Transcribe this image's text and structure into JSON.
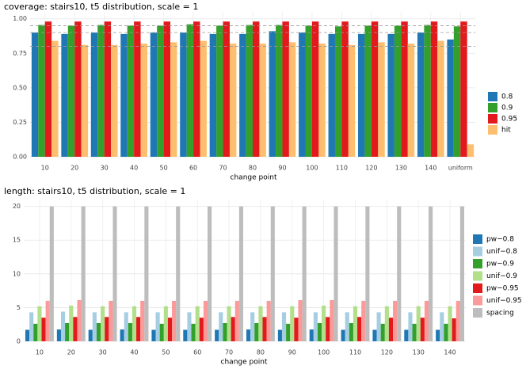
{
  "chart_data": [
    {
      "type": "bar",
      "title": "coverage: stairs10, t5 distribution, scale = 1",
      "x_label": "change point",
      "categories": [
        "10",
        "20",
        "30",
        "40",
        "50",
        "60",
        "70",
        "80",
        "90",
        "100",
        "110",
        "120",
        "130",
        "140",
        "uniform"
      ],
      "series": [
        {
          "name": "0.8",
          "color": "#1f78b4",
          "values": [
            0.9,
            0.89,
            0.9,
            0.89,
            0.9,
            0.9,
            0.89,
            0.89,
            0.91,
            0.9,
            0.89,
            0.89,
            0.89,
            0.9,
            0.85
          ]
        },
        {
          "name": "0.9",
          "color": "#33a02c",
          "values": [
            0.955,
            0.95,
            0.955,
            0.95,
            0.95,
            0.96,
            0.95,
            0.955,
            0.955,
            0.95,
            0.945,
            0.95,
            0.95,
            0.955,
            0.945
          ]
        },
        {
          "name": "0.95",
          "color": "#e31a1c",
          "values": [
            0.98,
            0.98,
            0.98,
            0.98,
            0.98,
            0.98,
            0.98,
            0.98,
            0.98,
            0.98,
            0.98,
            0.98,
            0.98,
            0.98,
            0.98
          ]
        },
        {
          "name": "hit",
          "color": "#fdbf6f",
          "values": [
            0.84,
            0.81,
            0.81,
            0.82,
            0.83,
            0.84,
            0.82,
            0.82,
            0.83,
            0.82,
            0.81,
            0.83,
            0.82,
            0.84,
            0.09
          ]
        }
      ],
      "ylim": [
        0,
        1.05
      ],
      "yticks": [
        {
          "value": 0,
          "label": "0.00"
        },
        {
          "value": 0.25,
          "label": "0.25"
        },
        {
          "value": 0.5,
          "label": "0.50"
        },
        {
          "value": 0.75,
          "label": "0.75"
        },
        {
          "value": 1,
          "label": "1.00"
        }
      ],
      "reference_lines": [
        0.8,
        0.9,
        0.95
      ],
      "grid": true,
      "legend": "right"
    },
    {
      "type": "bar",
      "title": "length: stairs10, t5 distribution, scale = 1",
      "x_label": "change point",
      "categories": [
        "10",
        "20",
        "30",
        "40",
        "50",
        "60",
        "70",
        "80",
        "90",
        "100",
        "110",
        "120",
        "130",
        "140"
      ],
      "series": [
        {
          "name": "pw−0.8",
          "color": "#1f78b4",
          "values": [
            1.7,
            1.75,
            1.7,
            1.75,
            1.7,
            1.7,
            1.7,
            1.75,
            1.7,
            1.75,
            1.7,
            1.7,
            1.7,
            1.7
          ]
        },
        {
          "name": "unif−0.8",
          "color": "#a6cee3",
          "values": [
            4.3,
            4.4,
            4.3,
            4.3,
            4.3,
            4.3,
            4.3,
            4.3,
            4.3,
            4.3,
            4.3,
            4.3,
            4.3,
            4.3
          ]
        },
        {
          "name": "pw−0.9",
          "color": "#33a02c",
          "values": [
            2.6,
            2.7,
            2.7,
            2.7,
            2.6,
            2.6,
            2.7,
            2.7,
            2.6,
            2.7,
            2.7,
            2.6,
            2.6,
            2.6
          ]
        },
        {
          "name": "unif−0.9",
          "color": "#b2df8a",
          "values": [
            5.2,
            5.3,
            5.2,
            5.2,
            5.2,
            5.2,
            5.2,
            5.2,
            5.2,
            5.3,
            5.2,
            5.2,
            5.2,
            5.2
          ]
        },
        {
          "name": "pw−0.95",
          "color": "#e31a1c",
          "values": [
            3.5,
            3.6,
            3.6,
            3.6,
            3.5,
            3.5,
            3.6,
            3.6,
            3.5,
            3.6,
            3.6,
            3.5,
            3.5,
            3.4
          ]
        },
        {
          "name": "unif−0.95",
          "color": "#fb9a99",
          "values": [
            6.0,
            6.1,
            6.0,
            6.0,
            6.0,
            6.0,
            6.0,
            6.0,
            6.1,
            6.1,
            6.0,
            6.0,
            6.0,
            6.0
          ]
        },
        {
          "name": "spacing",
          "color": "#bdbdbd",
          "values": [
            20,
            20,
            20,
            20,
            20,
            20,
            20,
            20,
            20,
            20,
            20,
            20,
            20,
            20
          ]
        }
      ],
      "ylim": [
        0,
        20.9
      ],
      "yticks": [
        0,
        5,
        10,
        15,
        20
      ],
      "grid": true,
      "legend": "right"
    }
  ]
}
